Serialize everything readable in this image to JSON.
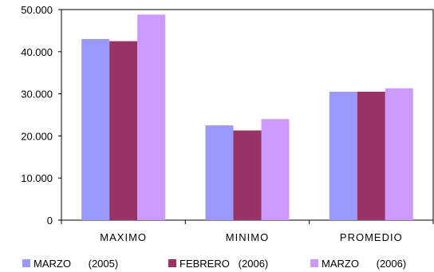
{
  "chart_data": {
    "type": "bar",
    "categories": [
      "MAXIMO",
      "MINIMO",
      "PROMEDIO"
    ],
    "series": [
      {
        "name": "MARZO      (2005)",
        "color": "#9999ff",
        "values": [
          43000,
          22500,
          30500
        ]
      },
      {
        "name": "FEBRERO   (2006)",
        "color": "#993366",
        "values": [
          42500,
          21300,
          30500
        ]
      },
      {
        "name": "MARZO      (2006)",
        "color": "#cc99ff",
        "values": [
          48800,
          24000,
          31300
        ]
      }
    ],
    "y_ticks": [
      "0",
      "10.000",
      "20.000",
      "30.000",
      "40.000",
      "50.000"
    ],
    "ylim": [
      0,
      50000
    ],
    "grid": false,
    "legend_position": "bottom",
    "title": "",
    "xlabel": "",
    "ylabel": ""
  }
}
